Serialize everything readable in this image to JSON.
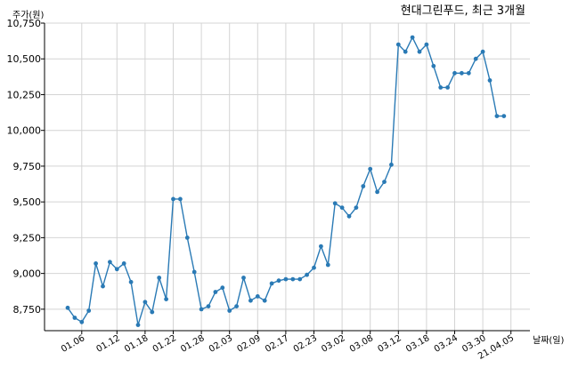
{
  "chart_data": {
    "type": "line",
    "title": "현대그린푸드, 최근 3개월",
    "ylabel": "주가(원)",
    "xlabel": "날짜(일)",
    "ylim": [
      8600,
      10750
    ],
    "grid": true,
    "y_ticks": [
      8750,
      9000,
      9250,
      9500,
      9750,
      10000,
      10250,
      10500,
      10750
    ],
    "y_tick_labels": [
      "8,750",
      "9,000",
      "9,250",
      "9,500",
      "9,750",
      "10,000",
      "10,250",
      "10,500",
      "10,750"
    ],
    "x_tick_labels": [
      "01.06",
      "01.12",
      "01.18",
      "01.22",
      "01.28",
      "02.03",
      "02.09",
      "02.17",
      "02.23",
      "03.02",
      "03.08",
      "03.12",
      "03.18",
      "03.24",
      "03.30",
      "21.04.05"
    ],
    "x_tick_indices": [
      2,
      7,
      11,
      15,
      19,
      23,
      27,
      31,
      35,
      39,
      43,
      47,
      51,
      55,
      59,
      63
    ],
    "line_color": "#2a7ab5",
    "series": [
      {
        "values": [
          8760,
          8690,
          8660,
          8740,
          9070,
          8910,
          9080,
          9030,
          9070,
          8940,
          8640,
          8800,
          8730,
          8970,
          8820,
          9520,
          9520,
          9250,
          9010,
          8750,
          8770,
          8870,
          8900,
          8740,
          8770,
          8970,
          8810,
          8840,
          8810,
          8930,
          8950,
          8960,
          8960,
          8960,
          8990,
          9040,
          9190,
          9060,
          9490,
          9460,
          9400,
          9460,
          9610,
          9730,
          9570,
          9640,
          9760,
          10600,
          10550,
          10650,
          10550,
          10600,
          10450,
          10300,
          10300,
          10400,
          10400,
          10400,
          10500,
          10550,
          10350,
          10100,
          10100
        ]
      }
    ]
  }
}
